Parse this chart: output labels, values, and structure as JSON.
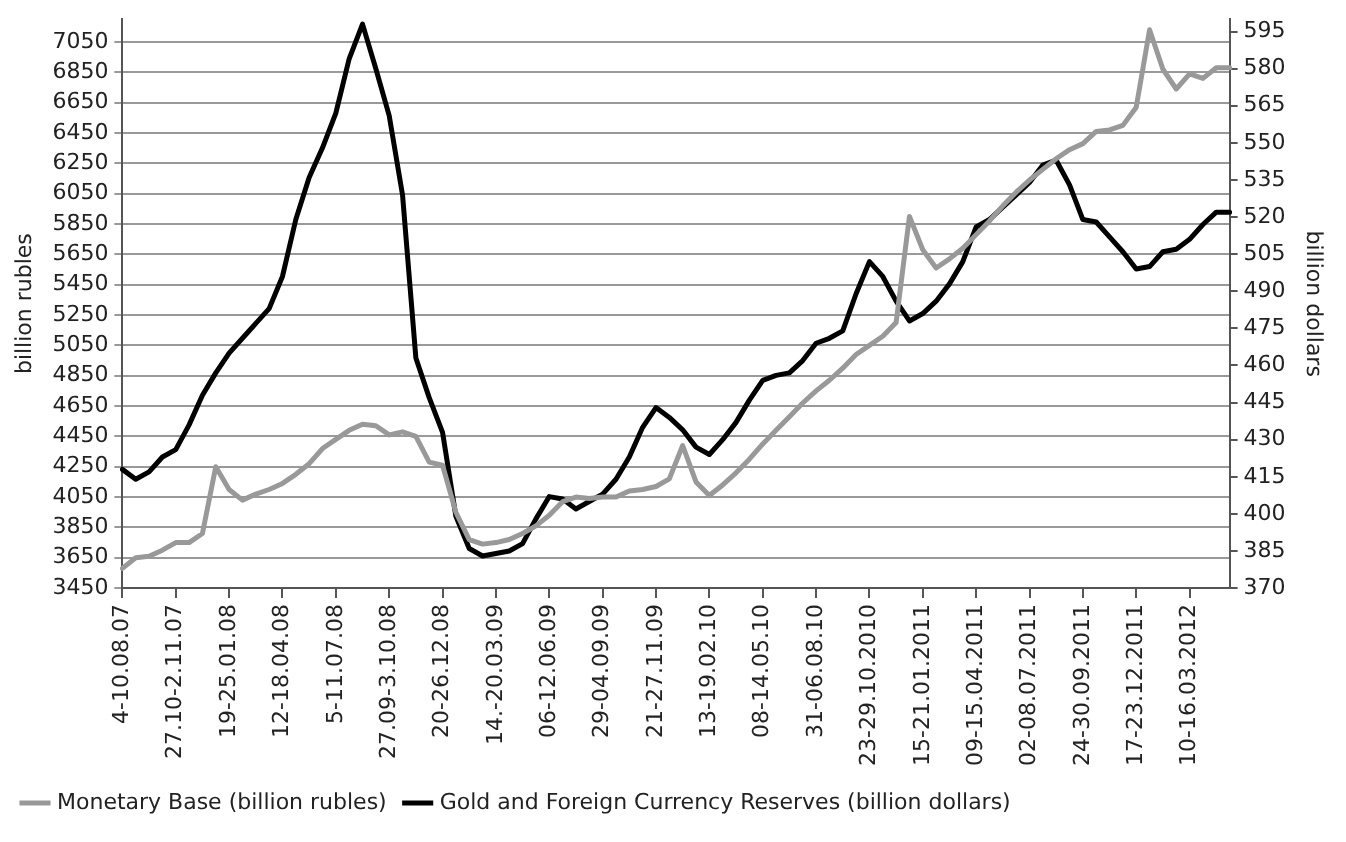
{
  "chart_data": {
    "type": "line",
    "ylabel": "billion rubles",
    "y2label": "billion dollars",
    "categories": [
      "4-10.08.07",
      null,
      null,
      null,
      "27.10-2.11.07",
      null,
      null,
      null,
      "19-25.01.08",
      null,
      null,
      null,
      "12-18.04.08",
      null,
      null,
      null,
      "5-11.07.08",
      null,
      null,
      null,
      "27.09-3.10.08",
      null,
      null,
      null,
      "20-26.12.08",
      null,
      null,
      null,
      "14.-20.03.09",
      null,
      null,
      null,
      "06-12.06.09",
      null,
      null,
      null,
      "29-04.09.09",
      null,
      null,
      null,
      "21-27.11.09",
      null,
      null,
      null,
      "13-19.02.10",
      null,
      null,
      null,
      "08-14.05.10",
      null,
      null,
      null,
      "31-06.08.10",
      null,
      null,
      null,
      "23-29.10.2010",
      null,
      null,
      null,
      "15-21.01.2011",
      null,
      null,
      null,
      "09-15.04.2011",
      null,
      null,
      null,
      "02-08.07.2011",
      null,
      null,
      null,
      "24-30.09.2011",
      null,
      null,
      null,
      "17-23.12.2011",
      null,
      null,
      null,
      "10-16.03.2012",
      null,
      null,
      null
    ],
    "ylim": [
      3450,
      7200
    ],
    "yticks": [
      3450,
      3650,
      3850,
      4050,
      4250,
      4450,
      4650,
      4850,
      5050,
      5250,
      5450,
      5650,
      5850,
      6050,
      6250,
      6450,
      6650,
      6850,
      7050
    ],
    "y2lim": [
      370,
      600
    ],
    "y2ticks": [
      370,
      385,
      400,
      415,
      430,
      445,
      460,
      475,
      490,
      505,
      520,
      535,
      550,
      565,
      580,
      595
    ],
    "grid": "y",
    "legend": "bottom",
    "marker": "none",
    "line_style": "solid",
    "series": [
      {
        "name": "Monetary Base (billion rubles)",
        "color": "#999999",
        "values": [
          3580,
          3650,
          3660,
          3700,
          3750,
          3750,
          3810,
          4250,
          4100,
          4030,
          4070,
          4100,
          4140,
          4200,
          4270,
          4370,
          4430,
          4490,
          4530,
          4520,
          4460,
          4480,
          4450,
          4280,
          4260,
          3950,
          3770,
          3740,
          3750,
          3770,
          3810,
          3860,
          3930,
          4020,
          4050,
          4040,
          4050,
          4050,
          4090,
          4100,
          4120,
          4170,
          4390,
          4150,
          4060,
          4130,
          4210,
          4300,
          4400,
          4490,
          4580,
          4670,
          4750,
          4820,
          4900,
          4990,
          5050,
          5110,
          5200,
          5900,
          5680,
          5560,
          5620,
          5690,
          5780,
          5870,
          5970,
          6060,
          6140,
          6210,
          6280,
          6340,
          6380,
          6460,
          6470,
          6500,
          6620,
          7130,
          6870,
          6740,
          6840,
          6810,
          6880,
          6880
        ]
      },
      {
        "name": "Gold and Foreign Currency Reserves (billion dollars)",
        "color": "#000000",
        "axis": "y2",
        "values": [
          418,
          414,
          417,
          423,
          426,
          436,
          448,
          457,
          465,
          471,
          477,
          483,
          496,
          519,
          536,
          548,
          562,
          584,
          598,
          580,
          561,
          529,
          463,
          447,
          433,
          399,
          386,
          383,
          384,
          385,
          388,
          398,
          407,
          406,
          402,
          405,
          408,
          414,
          423,
          435,
          443,
          439,
          434,
          427,
          424,
          430,
          437,
          446,
          454,
          456,
          457,
          462,
          469,
          471,
          474,
          489,
          502,
          496,
          486,
          478,
          481,
          486,
          493,
          502,
          516,
          519,
          524,
          529,
          534,
          541,
          543,
          533,
          519,
          518,
          512,
          506,
          499,
          500,
          506,
          507,
          511,
          517,
          522,
          522
        ]
      }
    ]
  }
}
